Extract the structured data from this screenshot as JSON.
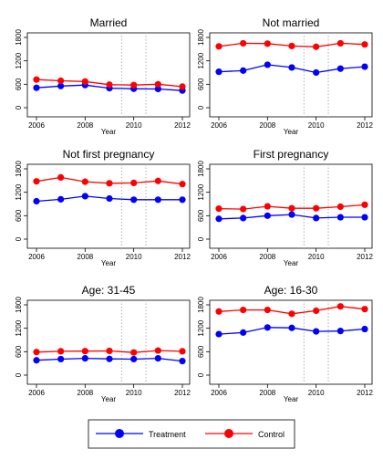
{
  "chart_data": [
    {
      "type": "line",
      "title": "Married",
      "xlabel": "Year",
      "ylabel": "",
      "x": [
        2006,
        2007,
        2008,
        2009,
        2010,
        2011,
        2012
      ],
      "xticks": [
        "2006",
        "2008",
        "2010",
        "2012"
      ],
      "yticks": [
        "0",
        "600",
        "1200",
        "1800"
      ],
      "ylim": [
        0,
        1800
      ],
      "xlim": [
        2006,
        2012
      ],
      "vlines": [
        2009.5,
        2010.5
      ],
      "series": [
        {
          "name": "Treatment",
          "values": [
            510,
            555,
            580,
            500,
            485,
            480,
            440
          ]
        },
        {
          "name": "Control",
          "values": [
            720,
            690,
            670,
            590,
            580,
            600,
            540
          ]
        }
      ]
    },
    {
      "type": "line",
      "title": "Not married",
      "xlabel": "Year",
      "ylabel": "",
      "x": [
        2006,
        2007,
        2008,
        2009,
        2010,
        2011,
        2012
      ],
      "xticks": [
        "2006",
        "2008",
        "2010",
        "2012"
      ],
      "yticks": [
        "0",
        "600",
        "1200",
        "1800"
      ],
      "ylim": [
        0,
        1800
      ],
      "xlim": [
        2006,
        2012
      ],
      "vlines": [
        2009.5,
        2010.5
      ],
      "series": [
        {
          "name": "Treatment",
          "values": [
            920,
            950,
            1100,
            1030,
            900,
            1000,
            1050
          ]
        },
        {
          "name": "Control",
          "values": [
            1570,
            1650,
            1640,
            1580,
            1560,
            1650,
            1620
          ]
        }
      ]
    },
    {
      "type": "line",
      "title": "Not first pregnancy",
      "xlabel": "Year",
      "ylabel": "",
      "x": [
        2006,
        2007,
        2008,
        2009,
        2010,
        2011,
        2012
      ],
      "xticks": [
        "2006",
        "2008",
        "2010",
        "2012"
      ],
      "yticks": [
        "0",
        "600",
        "1200",
        "1800"
      ],
      "ylim": [
        0,
        1800
      ],
      "xlim": [
        2006,
        2012
      ],
      "vlines": [
        2009.5,
        2010.5
      ],
      "series": [
        {
          "name": "Treatment",
          "values": [
            970,
            1020,
            1100,
            1040,
            1010,
            1010,
            1010
          ]
        },
        {
          "name": "Control",
          "values": [
            1480,
            1580,
            1470,
            1430,
            1440,
            1490,
            1410
          ]
        }
      ]
    },
    {
      "type": "line",
      "title": "First pregnancy",
      "xlabel": "Year",
      "ylabel": "",
      "x": [
        2006,
        2007,
        2008,
        2009,
        2010,
        2011,
        2012
      ],
      "xticks": [
        "2006",
        "2008",
        "2010",
        "2012"
      ],
      "yticks": [
        "0",
        "600",
        "1200",
        "1800"
      ],
      "ylim": [
        0,
        1800
      ],
      "xlim": [
        2006,
        2012
      ],
      "vlines": [
        2009.5,
        2010.5
      ],
      "series": [
        {
          "name": "Treatment",
          "values": [
            520,
            540,
            600,
            630,
            540,
            560,
            560
          ]
        },
        {
          "name": "Control",
          "values": [
            780,
            770,
            840,
            790,
            790,
            830,
            880
          ]
        }
      ]
    },
    {
      "type": "line",
      "title": "Age: 31-45",
      "xlabel": "Year",
      "ylabel": "",
      "x": [
        2006,
        2007,
        2008,
        2009,
        2010,
        2011,
        2012
      ],
      "xticks": [
        "2006",
        "2008",
        "2010",
        "2012"
      ],
      "yticks": [
        "0",
        "600",
        "1200",
        "1800"
      ],
      "ylim": [
        0,
        1800
      ],
      "xlim": [
        2006,
        2012
      ],
      "vlines": [
        2009.5,
        2010.5
      ],
      "series": [
        {
          "name": "Treatment",
          "values": [
            380,
            410,
            430,
            415,
            410,
            430,
            360
          ]
        },
        {
          "name": "Control",
          "values": [
            590,
            610,
            615,
            620,
            580,
            630,
            610
          ]
        }
      ]
    },
    {
      "type": "line",
      "title": "Age: 16-30",
      "xlabel": "Year",
      "ylabel": "",
      "x": [
        2006,
        2007,
        2008,
        2009,
        2010,
        2011,
        2012
      ],
      "xticks": [
        "2006",
        "2008",
        "2010",
        "2012"
      ],
      "yticks": [
        "0",
        "600",
        "1200",
        "1800"
      ],
      "ylim": [
        0,
        1800
      ],
      "xlim": [
        2006,
        2012
      ],
      "vlines": [
        2009.5,
        2010.5
      ],
      "series": [
        {
          "name": "Treatment",
          "values": [
            1050,
            1090,
            1220,
            1210,
            1120,
            1130,
            1180
          ]
        },
        {
          "name": "Control",
          "values": [
            1630,
            1670,
            1670,
            1570,
            1650,
            1760,
            1690
          ]
        }
      ]
    }
  ],
  "legend": {
    "items": [
      {
        "label": "Treatment",
        "color": "#0000ff"
      },
      {
        "label": "Control",
        "color": "#ff0000"
      }
    ]
  },
  "colors": {
    "Treatment": "#0000ff",
    "Control": "#ff0000",
    "axis": "#000000",
    "vline": "#b0b0b0"
  }
}
